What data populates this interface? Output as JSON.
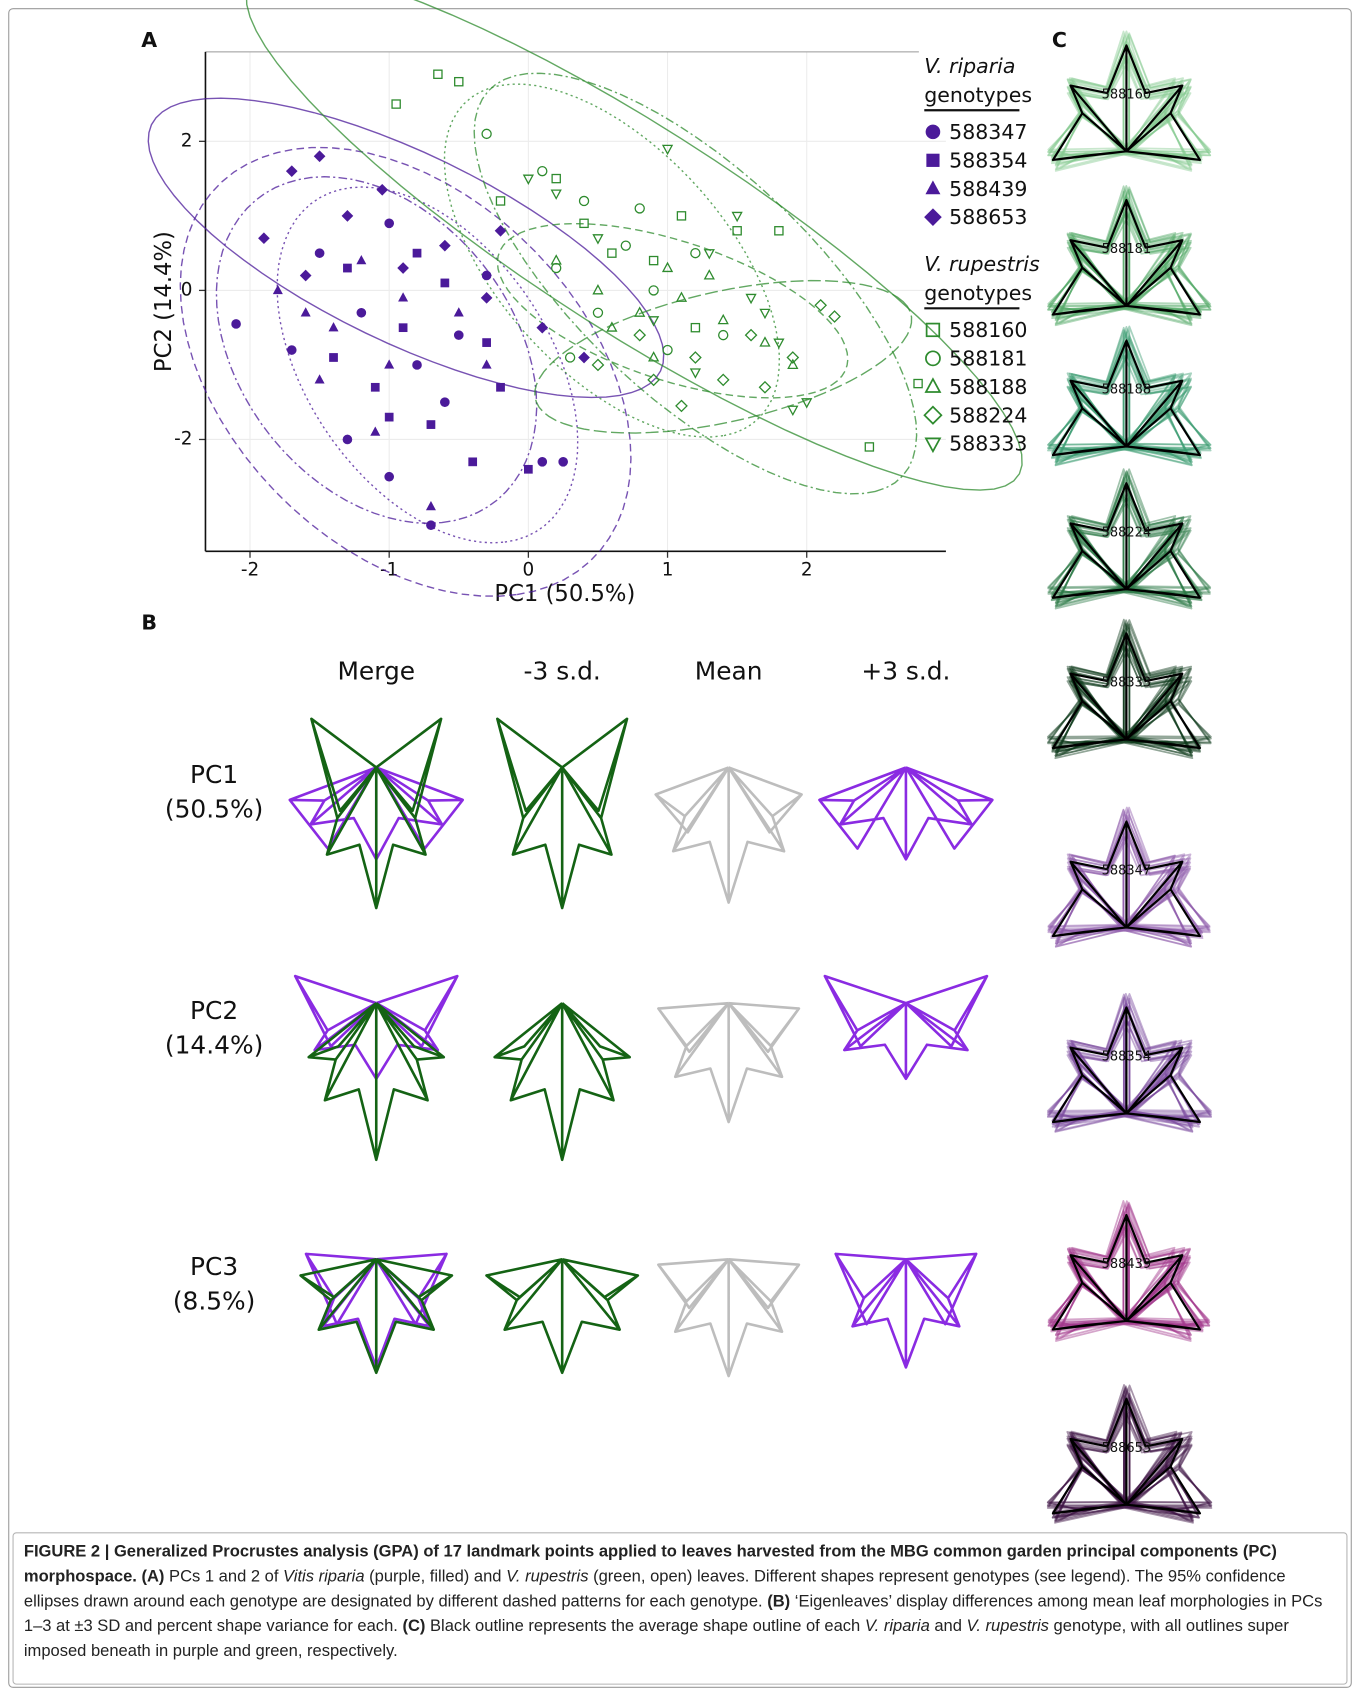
{
  "panel_labels": [
    "A",
    "B",
    "C"
  ],
  "chart_data": {
    "type": "scatter",
    "x_label": "PC1 (50.5%)",
    "y_label": "PC2 (14.4%)",
    "xlim": [
      -2.32,
      3.0
    ],
    "ylim": [
      -3.5,
      3.2
    ],
    "xticks": [
      -2,
      -1,
      0,
      1,
      2
    ],
    "yticks": [
      -2,
      0,
      2
    ],
    "grid": true,
    "legend": "right",
    "groups": [
      {
        "species": "V. riparia",
        "label": "genotypes",
        "color": "#4b1a9a",
        "filled": true,
        "series": [
          {
            "name": "588347",
            "marker": "circle",
            "line_style": "dashed",
            "x": [
              -2.1,
              -1.3,
              -1.0,
              -0.7,
              0.25,
              -1.5,
              -0.8,
              -1.2,
              -0.5,
              -0.3,
              -1.0,
              -0.6,
              0.1,
              -1.7
            ],
            "y": [
              -0.45,
              -2.0,
              -2.5,
              -3.15,
              -2.3,
              0.5,
              -1.0,
              -0.3,
              -0.6,
              0.2,
              0.9,
              -1.5,
              -2.3,
              -0.8
            ]
          },
          {
            "name": "588354",
            "marker": "square",
            "line_style": "dotted",
            "x": [
              -1.4,
              -1.1,
              -0.7,
              -0.4,
              0.0,
              -0.9,
              -0.6,
              -0.3,
              -1.3,
              -0.2,
              -1.0,
              -0.8
            ],
            "y": [
              -0.9,
              -1.3,
              -1.8,
              -2.3,
              -2.4,
              -0.5,
              0.1,
              -0.7,
              0.3,
              -1.3,
              -1.7,
              0.5
            ]
          },
          {
            "name": "588439",
            "marker": "triangle",
            "line_style": "dotdash",
            "x": [
              -1.8,
              -1.6,
              -1.4,
              -1.0,
              -0.7,
              -1.2,
              -0.9,
              -0.5,
              -1.5,
              -0.3,
              -1.1
            ],
            "y": [
              0.0,
              -0.3,
              -0.5,
              -1.0,
              -2.9,
              0.4,
              -0.1,
              -0.3,
              -1.2,
              -1.0,
              -1.9
            ]
          },
          {
            "name": "588653",
            "marker": "diamond",
            "line_style": "solid",
            "x": [
              -1.9,
              -1.7,
              -1.5,
              -1.05,
              -0.6,
              -0.3,
              0.1,
              0.4,
              -1.3,
              -0.9,
              -0.2,
              -1.6
            ],
            "y": [
              0.7,
              1.6,
              1.8,
              1.35,
              0.6,
              -0.1,
              -0.5,
              -0.9,
              1.0,
              0.3,
              0.8,
              0.2
            ]
          }
        ]
      },
      {
        "species": "V. rupestris",
        "label": "genotypes",
        "color": "#2e8b2e",
        "filled": false,
        "series": [
          {
            "name": "588160",
            "marker": "square",
            "line_style": "solid",
            "x": [
              -0.95,
              -0.65,
              -0.5,
              -0.2,
              0.4,
              0.9,
              1.1,
              1.5,
              1.8,
              2.45,
              2.8,
              0.2,
              1.2,
              0.6
            ],
            "y": [
              2.5,
              2.9,
              2.8,
              1.2,
              0.9,
              0.4,
              1.0,
              0.8,
              0.8,
              -2.1,
              -1.25,
              1.5,
              -0.5,
              0.5
            ]
          },
          {
            "name": "588181",
            "marker": "circle",
            "line_style": "dotted",
            "x": [
              -0.3,
              0.1,
              0.4,
              0.8,
              1.2,
              0.5,
              0.9,
              1.4,
              0.3,
              1.0,
              0.7,
              0.2
            ],
            "y": [
              2.1,
              1.6,
              1.2,
              1.1,
              0.5,
              -0.3,
              0.0,
              -0.6,
              -0.9,
              -0.8,
              0.6,
              0.3
            ]
          },
          {
            "name": "588188",
            "marker": "triangle",
            "line_style": "dashed",
            "x": [
              0.2,
              0.5,
              0.8,
              1.1,
              1.4,
              1.0,
              1.7,
              0.6,
              1.3,
              0.9,
              1.9
            ],
            "y": [
              0.4,
              0.0,
              -0.3,
              -0.1,
              -0.4,
              0.3,
              -0.7,
              -0.5,
              0.2,
              -0.9,
              -1.0
            ]
          },
          {
            "name": "588224",
            "marker": "diamond",
            "line_style": "longdash",
            "x": [
              0.5,
              0.9,
              1.1,
              1.4,
              1.9,
              2.1,
              2.2,
              1.6,
              0.8,
              1.2,
              1.7
            ],
            "y": [
              -1.0,
              -1.2,
              -1.55,
              -1.2,
              -0.9,
              -0.2,
              -0.35,
              -0.6,
              -0.6,
              -0.9,
              -1.3
            ]
          },
          {
            "name": "588333",
            "marker": "down-triangle",
            "line_style": "dotdash",
            "x": [
              0.0,
              0.2,
              0.5,
              1.0,
              1.5,
              1.3,
              1.6,
              1.8,
              1.9,
              2.0,
              1.2,
              0.9,
              1.7
            ],
            "y": [
              1.5,
              1.3,
              0.7,
              1.9,
              1.0,
              0.5,
              -0.1,
              -0.7,
              -1.6,
              -1.5,
              -1.1,
              -0.4,
              -0.3
            ]
          }
        ]
      }
    ]
  },
  "panel_b": {
    "columns": [
      "Merge",
      "-3 s.d.",
      "Mean",
      "+3 s.d."
    ],
    "rows": [
      {
        "name": "PC1",
        "variance": "(50.5%)"
      },
      {
        "name": "PC2",
        "variance": "(14.4%)"
      },
      {
        "name": "PC3",
        "variance": "(8.5%)"
      }
    ],
    "colors": {
      "minus": "#146314",
      "mean": "#bdbdbd",
      "plus": "#8a2be2"
    }
  },
  "panel_c": {
    "mean_color": "#000000",
    "leaves": [
      {
        "label": "588160",
        "color": "#86c990"
      },
      {
        "label": "588181",
        "color": "#52a865"
      },
      {
        "label": "588188",
        "color": "#3f9e73"
      },
      {
        "label": "588224",
        "color": "#2c7a47"
      },
      {
        "label": "588333",
        "color": "#0d3a1b"
      },
      {
        "label": "588347",
        "color": "#8e5cab"
      },
      {
        "label": "588354",
        "color": "#7a4a9e"
      },
      {
        "label": "588439",
        "color": "#a2388b"
      },
      {
        "label": "588653",
        "color": "#3d1545"
      }
    ]
  },
  "caption": [
    {
      "text": "FIGURE 2 | Generalized Procrustes analysis (GPA) of 17 landmark points applied to leaves harvested from the MBG common garden principal components (PC) morphospace. ",
      "style": "bold"
    },
    {
      "text": "(A)",
      "style": "bold"
    },
    {
      "text": " PCs 1 and 2 of ",
      "style": "normal"
    },
    {
      "text": "Vitis riparia",
      "style": "italic"
    },
    {
      "text": " (purple, filled) and ",
      "style": "normal"
    },
    {
      "text": "V. rupestris",
      "style": "italic"
    },
    {
      "text": " (green, open) leaves. Different shapes represent genotypes (see legend). The 95% confidence ellipses drawn around each genotype are designated by different dashed patterns for each genotype. ",
      "style": "normal"
    },
    {
      "text": "(B)",
      "style": "bold"
    },
    {
      "text": " ‘Eigenleaves’ display differences among mean leaf morphologies in PCs 1–3 at ±3 SD and percent shape variance for each. ",
      "style": "normal"
    },
    {
      "text": "(C)",
      "style": "bold"
    },
    {
      "text": " Black outline represents the average shape outline of each ",
      "style": "normal"
    },
    {
      "text": "V. riparia",
      "style": "italic"
    },
    {
      "text": " and ",
      "style": "normal"
    },
    {
      "text": "V. rupestris",
      "style": "italic"
    },
    {
      "text": " genotype, with all outlines super imposed beneath in purple and green, respectively.",
      "style": "normal"
    }
  ]
}
